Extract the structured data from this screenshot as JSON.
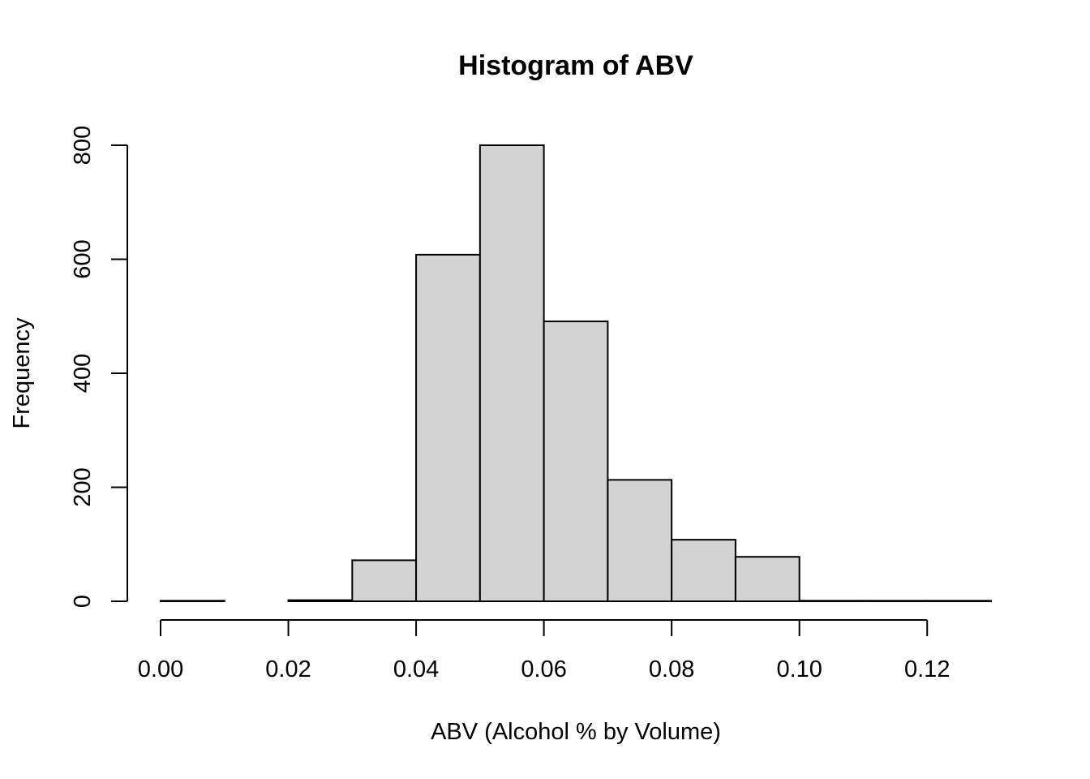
{
  "chart_data": {
    "type": "bar",
    "title": "Histogram of ABV",
    "xlabel": "ABV (Alcohol % by Volume)",
    "ylabel": "Frequency",
    "bins": [
      {
        "x0": 0.0,
        "x1": 0.01,
        "value": 1
      },
      {
        "x0": 0.01,
        "x1": 0.02,
        "value": 0
      },
      {
        "x0": 0.02,
        "x1": 0.03,
        "value": 2
      },
      {
        "x0": 0.03,
        "x1": 0.04,
        "value": 72
      },
      {
        "x0": 0.04,
        "x1": 0.05,
        "value": 608
      },
      {
        "x0": 0.05,
        "x1": 0.06,
        "value": 800
      },
      {
        "x0": 0.06,
        "x1": 0.07,
        "value": 491
      },
      {
        "x0": 0.07,
        "x1": 0.08,
        "value": 213
      },
      {
        "x0": 0.08,
        "x1": 0.09,
        "value": 108
      },
      {
        "x0": 0.09,
        "x1": 0.1,
        "value": 78
      },
      {
        "x0": 0.1,
        "x1": 0.11,
        "value": 1
      },
      {
        "x0": 0.11,
        "x1": 0.12,
        "value": 1
      },
      {
        "x0": 0.12,
        "x1": 0.13,
        "value": 1
      }
    ],
    "xlim": [
      0.0,
      0.13
    ],
    "ylim": [
      0,
      800
    ],
    "x_ticks": [
      0.0,
      0.02,
      0.04,
      0.06,
      0.08,
      0.1,
      0.12
    ],
    "x_tick_labels": [
      "0.00",
      "0.02",
      "0.04",
      "0.06",
      "0.08",
      "0.10",
      "0.12"
    ],
    "y_ticks": [
      0,
      200,
      400,
      600,
      800
    ],
    "y_tick_labels": [
      "0",
      "200",
      "400",
      "600",
      "800"
    ],
    "bar_color": "#d3d3d3",
    "edge_color": "#000000",
    "grid": false
  }
}
